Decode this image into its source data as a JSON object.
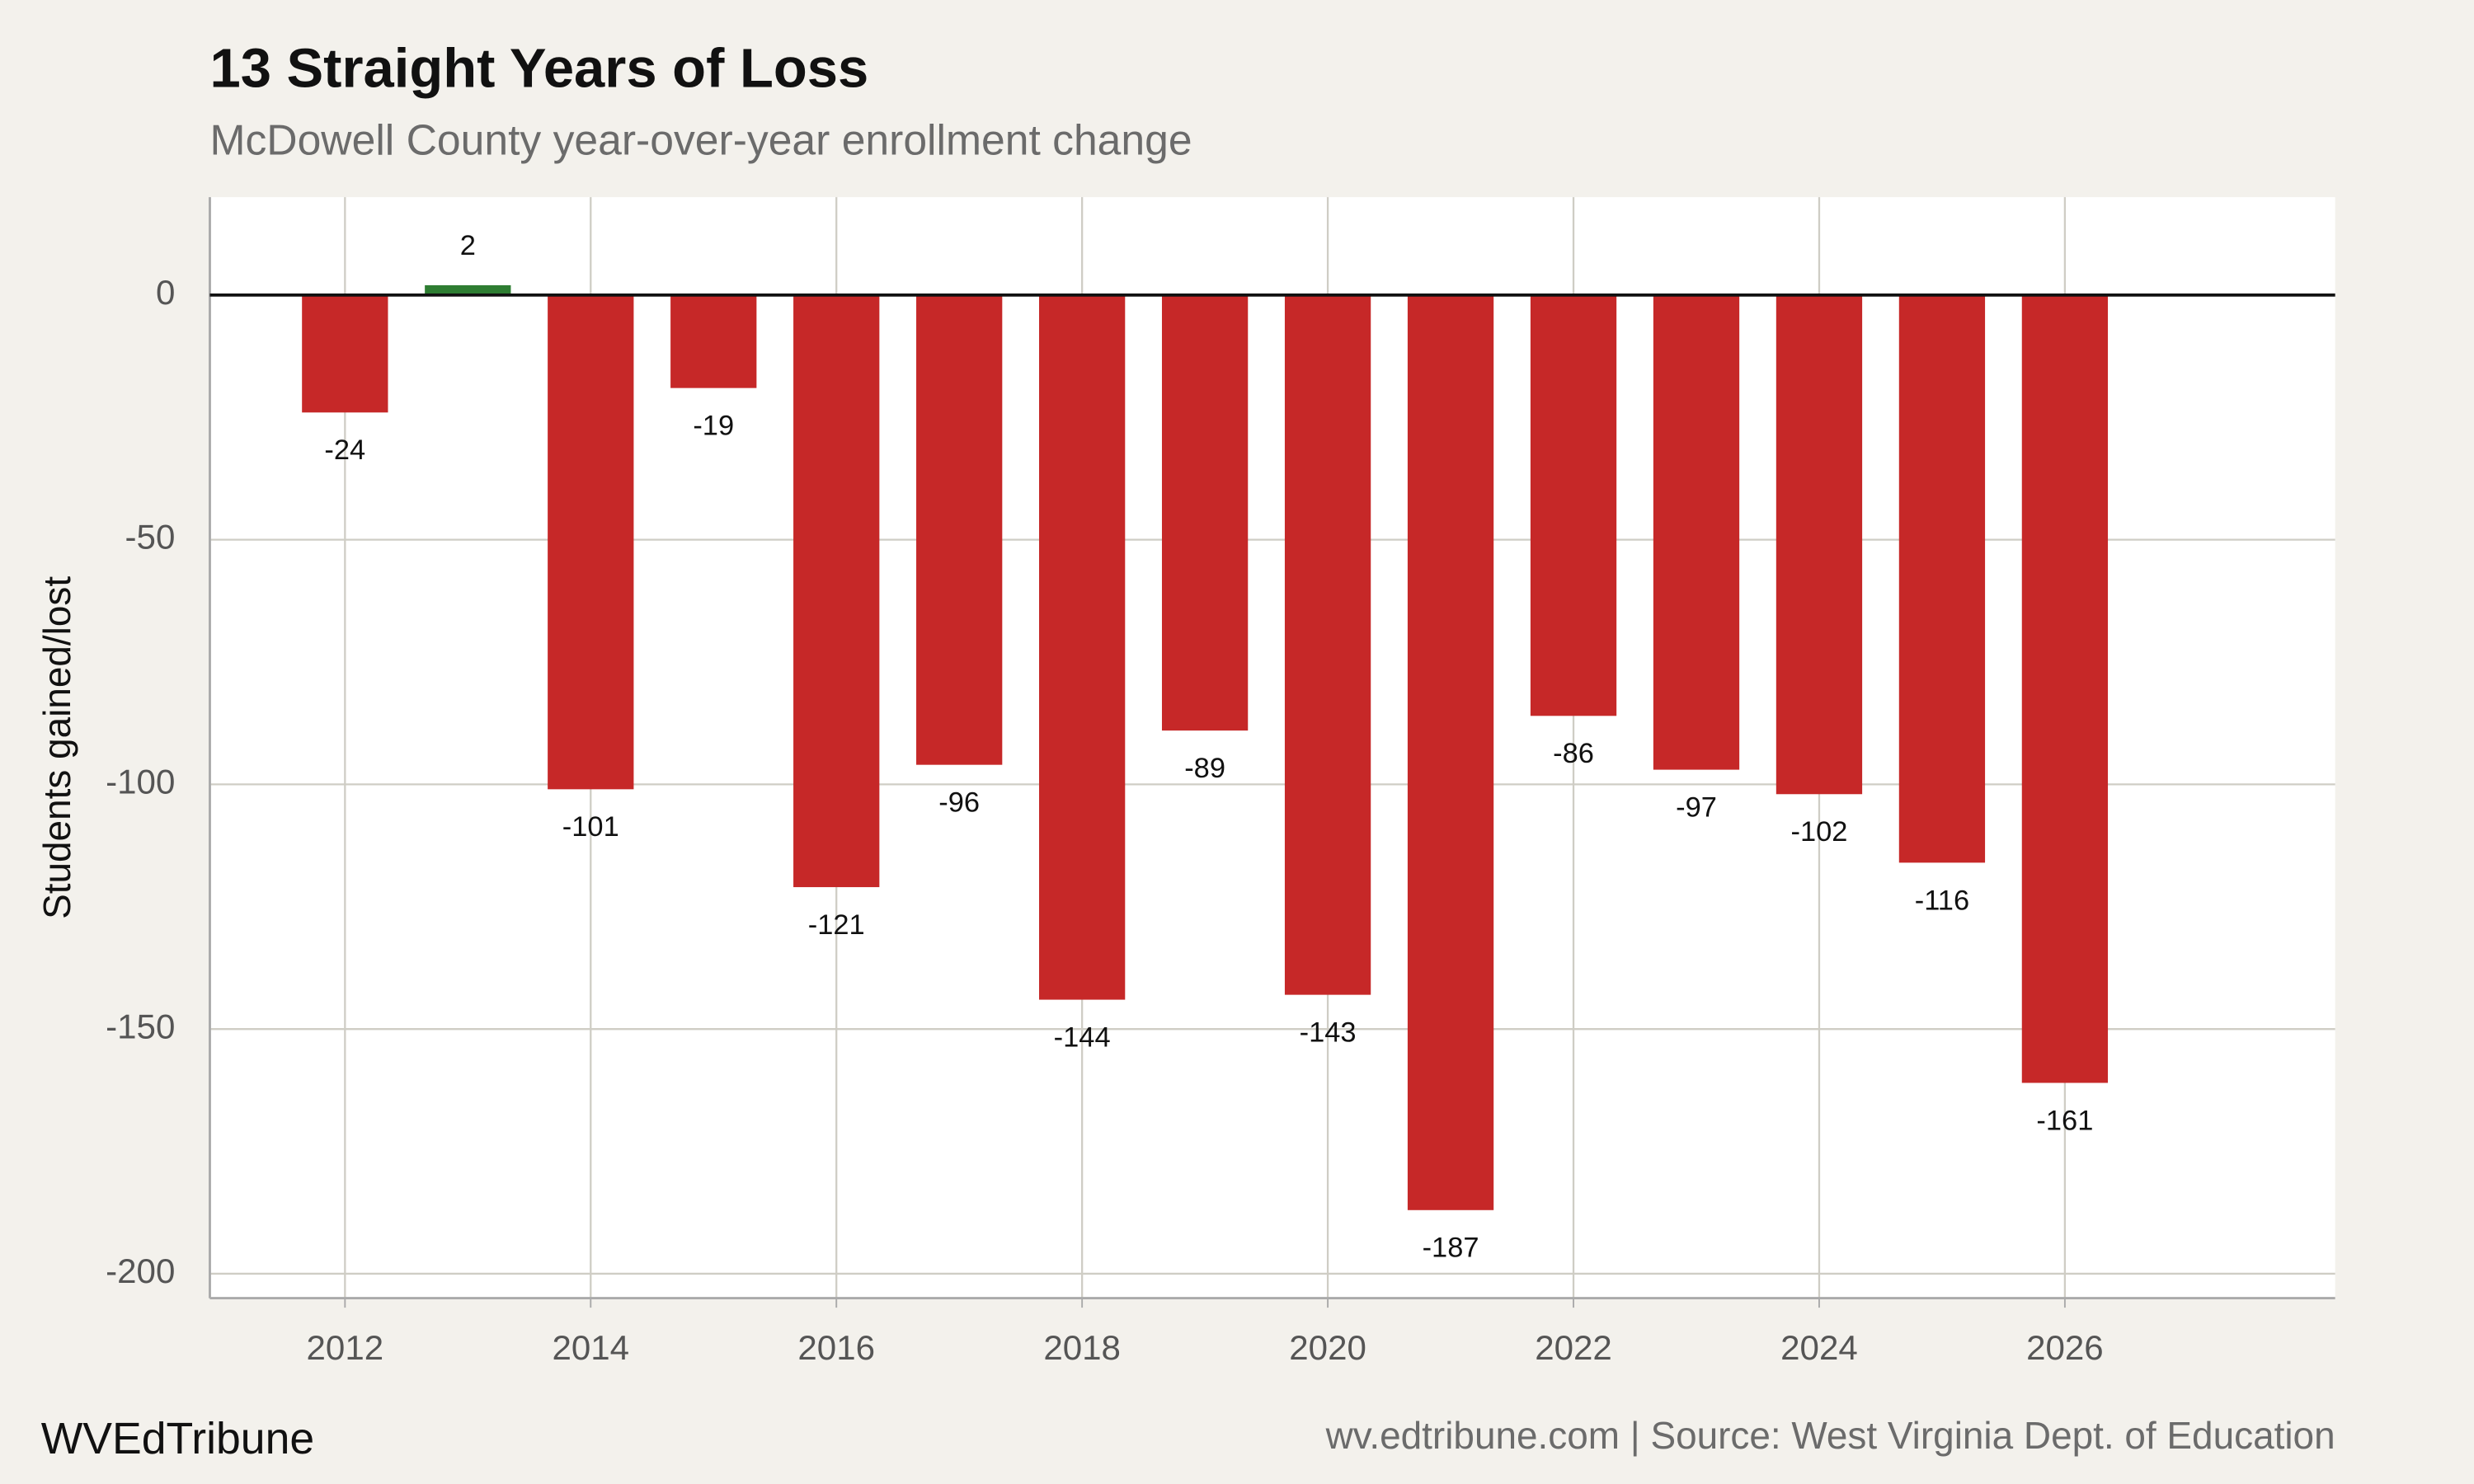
{
  "chart_data": {
    "type": "bar",
    "title": "13 Straight Years of Loss",
    "subtitle": "McDowell County year-over-year enrollment change",
    "y_label": "Students gained/lost",
    "brand": "WVEdTribune",
    "source": "wv.edtribune.com | Source: West Virginia Dept. of Education",
    "x": [
      2012,
      2013,
      2014,
      2015,
      2016,
      2017,
      2018,
      2019,
      2020,
      2021,
      2022,
      2023,
      2024,
      2025,
      2026
    ],
    "values": [
      -24,
      2,
      -101,
      -19,
      -121,
      -96,
      -144,
      -89,
      -143,
      -187,
      -86,
      -97,
      -102,
      -116,
      -161
    ],
    "positive_color": "#2e7d32",
    "negative_color": "#c62828",
    "xlim": [
      2010.9,
      2028.2
    ],
    "xticks": [
      2012,
      2014,
      2016,
      2018,
      2020,
      2022,
      2024,
      2026
    ],
    "ylim": [
      -205,
      20
    ],
    "yticks": [
      -200,
      -150,
      -100,
      -50,
      0
    ],
    "grid": true
  }
}
